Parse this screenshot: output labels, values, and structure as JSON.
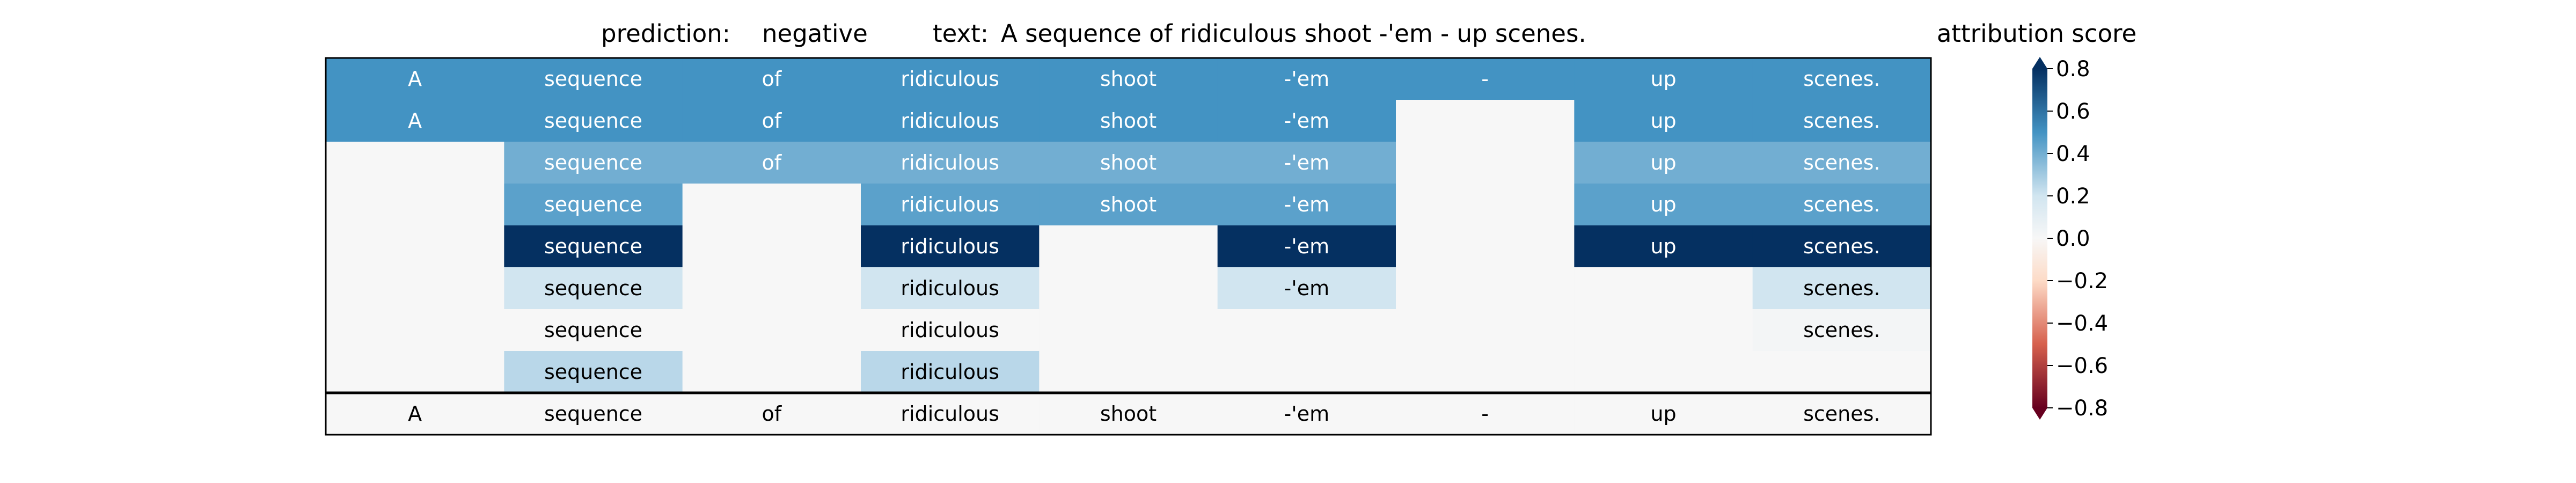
{
  "chart_data": {
    "type": "heatmap",
    "title": {
      "prediction_label": "prediction:",
      "prediction_value": "negative",
      "text_label": "text:",
      "text_value": "A sequence of ridiculous shoot -'em - up scenes."
    },
    "tokens": [
      "A",
      "sequence",
      "of",
      "ridiculous",
      "shoot",
      "-'em",
      "-",
      "up",
      "scenes."
    ],
    "rows": [
      [
        0.5,
        0.5,
        0.5,
        0.5,
        0.5,
        0.5,
        0.5,
        0.5,
        0.5
      ],
      [
        0.5,
        0.5,
        0.5,
        0.5,
        0.5,
        0.5,
        0.0,
        0.5,
        0.5
      ],
      [
        0.0,
        0.4,
        0.4,
        0.4,
        0.4,
        0.4,
        0.0,
        0.4,
        0.4
      ],
      [
        0.0,
        0.45,
        0.0,
        0.45,
        0.45,
        0.45,
        0.0,
        0.45,
        0.45
      ],
      [
        0.0,
        0.8,
        0.0,
        0.8,
        0.0,
        0.8,
        0.0,
        0.8,
        0.8
      ],
      [
        0.0,
        0.2,
        0.0,
        0.2,
        0.0,
        0.2,
        0.0,
        0.0,
        0.2
      ],
      [
        0.0,
        0.0,
        0.0,
        0.0,
        0.0,
        0.0,
        0.0,
        0.0,
        0.02
      ],
      [
        0.0,
        0.25,
        0.0,
        0.25,
        0.0,
        0.0,
        0.0,
        0.0,
        0.0
      ]
    ],
    "visible": [
      [
        1,
        1,
        1,
        1,
        1,
        1,
        1,
        1,
        1
      ],
      [
        1,
        1,
        1,
        1,
        1,
        1,
        0,
        1,
        1
      ],
      [
        0,
        1,
        1,
        1,
        1,
        1,
        0,
        1,
        1
      ],
      [
        0,
        1,
        0,
        1,
        1,
        1,
        0,
        1,
        1
      ],
      [
        0,
        1,
        0,
        1,
        0,
        1,
        0,
        1,
        1
      ],
      [
        0,
        1,
        0,
        1,
        0,
        1,
        0,
        0,
        1
      ],
      [
        0,
        1,
        0,
        1,
        0,
        0,
        0,
        0,
        1
      ],
      [
        0,
        1,
        0,
        1,
        0,
        0,
        0,
        0,
        0
      ]
    ],
    "summary_row": {
      "values": [
        0.0,
        0.0,
        0.0,
        0.0,
        0.0,
        0.0,
        0.0,
        0.0,
        0.0
      ],
      "labels": [
        "A",
        "sequence",
        "of",
        "ridiculous",
        "shoot",
        "-'em",
        "-",
        "up",
        "scenes."
      ]
    },
    "colorbar": {
      "label": "attribution score",
      "vmin": -0.8,
      "vmax": 0.8,
      "ticks": [
        0.8,
        0.6,
        0.4,
        0.2,
        0.0,
        -0.2,
        -0.4,
        -0.6,
        -0.8
      ],
      "tick_labels": [
        "0.8",
        "0.6",
        "0.4",
        "0.2",
        "0.0",
        "−0.2",
        "−0.4",
        "−0.6",
        "−0.8"
      ],
      "colormap": "RdBu",
      "extend": "both"
    },
    "colors": {
      "neg_dark": "#67001f",
      "neg_mid": "#d6604d",
      "neg_light": "#fddbc7",
      "zero": "#f7f7f7",
      "pos_light": "#d1e5f0",
      "pos_mid": "#4393c3",
      "pos_dark": "#053061"
    }
  }
}
